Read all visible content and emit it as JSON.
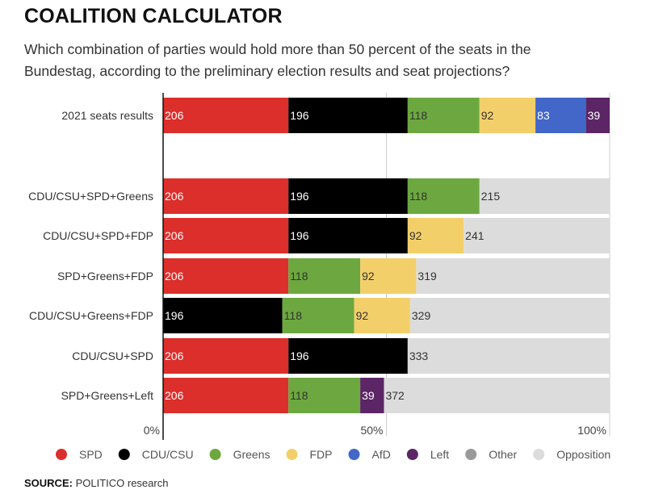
{
  "chart_data": {
    "type": "bar",
    "orientation": "horizontal",
    "stacked": true,
    "title": "COALITION CALCULATOR",
    "subtitle": "Which combination of parties would hold more than 50 percent of the seats in the Bundestag, according to the preliminary election results and seat projections?",
    "total_seats": 734,
    "xlim_percent": [
      0,
      100
    ],
    "x_ticks": [
      "0%",
      "50%",
      "100%"
    ],
    "grid": true,
    "legend_position": "bottom",
    "colors": {
      "SPD": "#dc2f2b",
      "CDU/CSU": "#000000",
      "Greens": "#6ca83f",
      "FDP": "#f3cf6a",
      "AfD": "#4267c9",
      "Left": "#5c2565",
      "Other": "#9a9a9a",
      "Opposition": "#dcdcdc"
    },
    "legend": [
      "SPD",
      "CDU/CSU",
      "Greens",
      "FDP",
      "AfD",
      "Left",
      "Other",
      "Opposition"
    ],
    "rows": [
      {
        "label": "2021 seats results",
        "segments": [
          {
            "party": "SPD",
            "value": 206
          },
          {
            "party": "CDU/CSU",
            "value": 196
          },
          {
            "party": "Greens",
            "value": 118
          },
          {
            "party": "FDP",
            "value": 92
          },
          {
            "party": "AfD",
            "value": 83
          },
          {
            "party": "Left",
            "value": 39
          }
        ]
      },
      {
        "label": "",
        "segments": []
      },
      {
        "label": "CDU/CSU+SPD+Greens",
        "segments": [
          {
            "party": "SPD",
            "value": 206
          },
          {
            "party": "CDU/CSU",
            "value": 196
          },
          {
            "party": "Greens",
            "value": 118
          },
          {
            "party": "Opposition",
            "value": 215
          }
        ]
      },
      {
        "label": "CDU/CSU+SPD+FDP",
        "segments": [
          {
            "party": "SPD",
            "value": 206
          },
          {
            "party": "CDU/CSU",
            "value": 196
          },
          {
            "party": "FDP",
            "value": 92
          },
          {
            "party": "Opposition",
            "value": 241
          }
        ]
      },
      {
        "label": "SPD+Greens+FDP",
        "segments": [
          {
            "party": "SPD",
            "value": 206
          },
          {
            "party": "Greens",
            "value": 118
          },
          {
            "party": "FDP",
            "value": 92
          },
          {
            "party": "Opposition",
            "value": 319
          }
        ]
      },
      {
        "label": "CDU/CSU+Greens+FDP",
        "segments": [
          {
            "party": "CDU/CSU",
            "value": 196
          },
          {
            "party": "Greens",
            "value": 118
          },
          {
            "party": "FDP",
            "value": 92
          },
          {
            "party": "Opposition",
            "value": 329
          }
        ]
      },
      {
        "label": "CDU/CSU+SPD",
        "segments": [
          {
            "party": "SPD",
            "value": 206
          },
          {
            "party": "CDU/CSU",
            "value": 196
          },
          {
            "party": "Opposition",
            "value": 333
          }
        ]
      },
      {
        "label": "SPD+Greens+Left",
        "segments": [
          {
            "party": "SPD",
            "value": 206
          },
          {
            "party": "Greens",
            "value": 118
          },
          {
            "party": "Left",
            "value": 39
          },
          {
            "party": "Opposition",
            "value": 372
          }
        ]
      }
    ]
  },
  "source": {
    "label": "SOURCE:",
    "text": "POLITICO research"
  }
}
